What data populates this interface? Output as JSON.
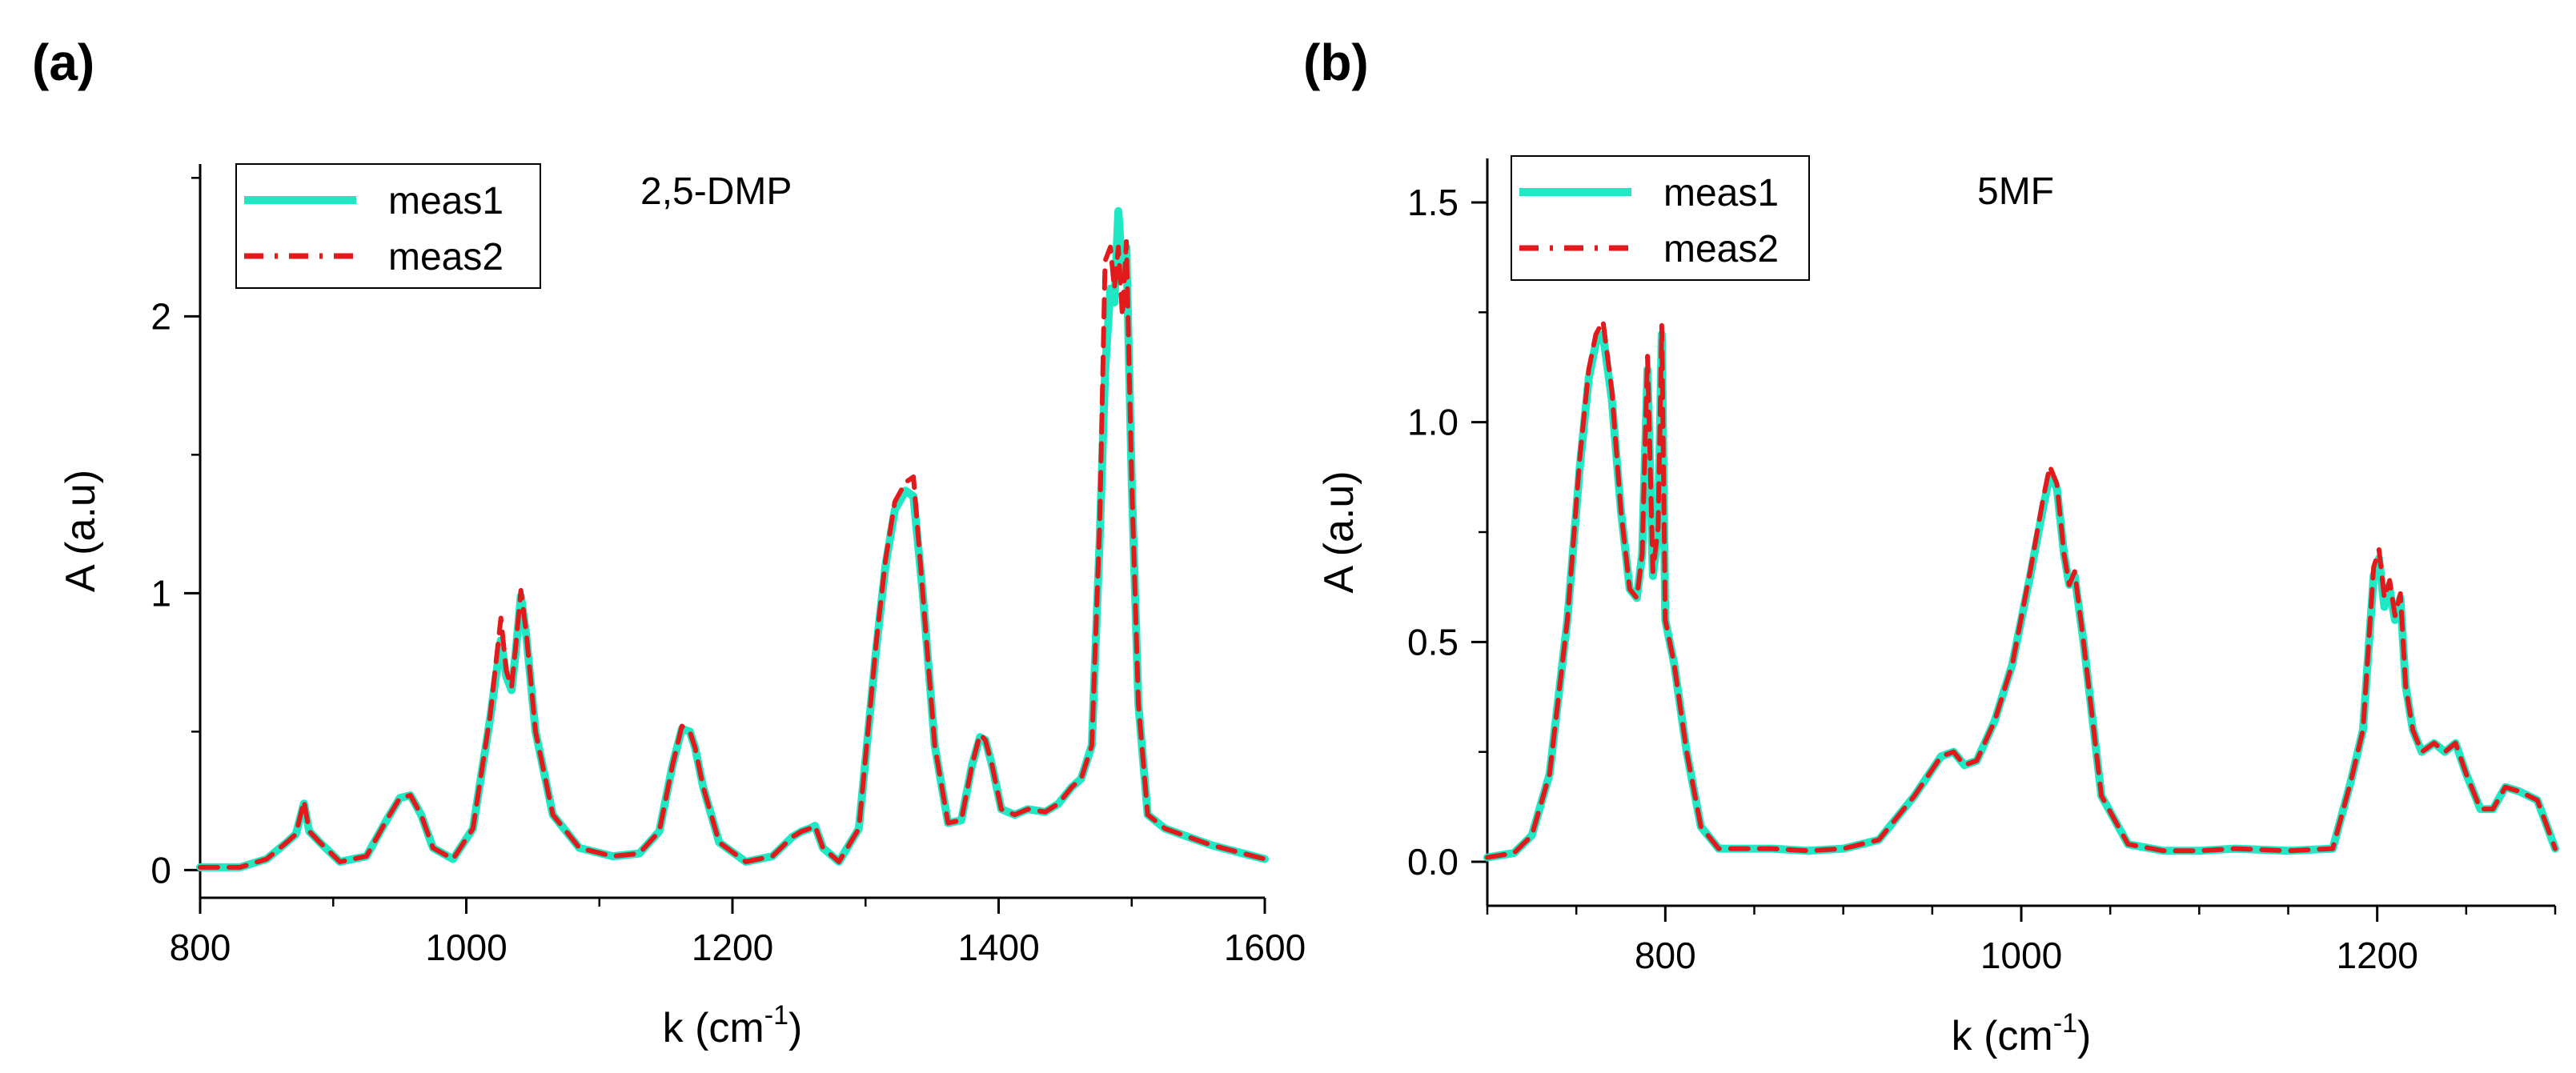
{
  "chart_data": [
    {
      "type": "line",
      "panel_label": "(a)",
      "title": "2,5-DMP",
      "xlabel": "k (cm",
      "xlabel_sup": "-1",
      "xlabel_close": ")",
      "ylabel": "A (a.u)",
      "xlim": [
        800,
        1600
      ],
      "ylim": [
        -0.1,
        2.55
      ],
      "xticks": [
        800,
        1000,
        1200,
        1400,
        1600
      ],
      "xtick_labels": [
        "800",
        "1000",
        "1200",
        "1400",
        "1600"
      ],
      "yticks": [
        0,
        1,
        2
      ],
      "ytick_labels": [
        "0",
        "1",
        "2"
      ],
      "grid": false,
      "legend_position": "top-left",
      "colors": {
        "meas1": "#1fe9c4",
        "meas2": "#e31a1c"
      },
      "series": [
        {
          "name": "meas1",
          "style": "solid",
          "x": [
            800,
            830,
            850,
            865,
            872,
            878,
            882,
            890,
            905,
            925,
            940,
            950,
            958,
            966,
            975,
            990,
            1005,
            1018,
            1026,
            1030,
            1034,
            1037,
            1041,
            1045,
            1052,
            1065,
            1085,
            1110,
            1130,
            1145,
            1155,
            1162,
            1168,
            1172,
            1178,
            1190,
            1210,
            1230,
            1245,
            1252,
            1258,
            1262,
            1268,
            1280,
            1295,
            1308,
            1315,
            1322,
            1330,
            1336,
            1343,
            1352,
            1362,
            1372,
            1380,
            1386,
            1390,
            1395,
            1402,
            1412,
            1422,
            1435,
            1445,
            1455,
            1462,
            1470,
            1476,
            1480,
            1484,
            1487,
            1490,
            1493,
            1496,
            1500,
            1505,
            1512,
            1525,
            1560,
            1600
          ],
          "values": [
            0.01,
            0.01,
            0.04,
            0.1,
            0.13,
            0.24,
            0.14,
            0.1,
            0.03,
            0.05,
            0.18,
            0.26,
            0.27,
            0.2,
            0.08,
            0.04,
            0.15,
            0.55,
            0.83,
            0.7,
            0.65,
            0.78,
            0.99,
            0.85,
            0.5,
            0.2,
            0.08,
            0.05,
            0.06,
            0.14,
            0.38,
            0.51,
            0.5,
            0.44,
            0.3,
            0.1,
            0.03,
            0.05,
            0.12,
            0.14,
            0.15,
            0.16,
            0.08,
            0.03,
            0.15,
            0.8,
            1.1,
            1.3,
            1.37,
            1.35,
            1.0,
            0.45,
            0.17,
            0.18,
            0.38,
            0.48,
            0.47,
            0.38,
            0.22,
            0.2,
            0.22,
            0.21,
            0.24,
            0.3,
            0.33,
            0.45,
            1.2,
            1.8,
            2.1,
            2.05,
            2.38,
            2.15,
            2.25,
            1.4,
            0.6,
            0.2,
            0.15,
            0.09,
            0.04
          ]
        },
        {
          "name": "meas2",
          "style": "dashed",
          "x": [
            800,
            830,
            850,
            865,
            872,
            878,
            882,
            890,
            905,
            925,
            940,
            950,
            958,
            966,
            975,
            990,
            1005,
            1018,
            1026,
            1030,
            1034,
            1037,
            1041,
            1045,
            1052,
            1065,
            1085,
            1110,
            1130,
            1145,
            1155,
            1162,
            1168,
            1172,
            1178,
            1190,
            1210,
            1230,
            1245,
            1252,
            1258,
            1262,
            1268,
            1280,
            1295,
            1308,
            1315,
            1322,
            1330,
            1336,
            1343,
            1352,
            1362,
            1372,
            1380,
            1386,
            1390,
            1395,
            1402,
            1412,
            1422,
            1435,
            1445,
            1455,
            1462,
            1470,
            1476,
            1480,
            1484,
            1487,
            1490,
            1493,
            1496,
            1500,
            1505,
            1512,
            1525,
            1560,
            1600
          ],
          "values": [
            0.01,
            0.01,
            0.04,
            0.1,
            0.13,
            0.25,
            0.14,
            0.1,
            0.03,
            0.05,
            0.18,
            0.26,
            0.27,
            0.2,
            0.08,
            0.04,
            0.15,
            0.56,
            0.91,
            0.72,
            0.66,
            0.8,
            1.01,
            0.86,
            0.5,
            0.2,
            0.08,
            0.05,
            0.06,
            0.14,
            0.38,
            0.52,
            0.5,
            0.44,
            0.3,
            0.1,
            0.03,
            0.05,
            0.12,
            0.14,
            0.15,
            0.16,
            0.08,
            0.03,
            0.15,
            0.82,
            1.12,
            1.33,
            1.4,
            1.42,
            1.0,
            0.45,
            0.17,
            0.18,
            0.38,
            0.49,
            0.47,
            0.38,
            0.22,
            0.2,
            0.22,
            0.21,
            0.24,
            0.3,
            0.33,
            0.45,
            1.25,
            2.2,
            2.25,
            2.1,
            2.25,
            2.0,
            2.27,
            1.4,
            0.6,
            0.2,
            0.15,
            0.09,
            0.04
          ]
        }
      ],
      "legend": {
        "entries": [
          "meas1",
          "meas2"
        ]
      }
    },
    {
      "type": "line",
      "panel_label": "(b)",
      "title": "5MF",
      "xlabel": "k (cm",
      "xlabel_sup": "-1",
      "xlabel_close": ")",
      "ylabel": "A (a.u)",
      "xlim": [
        700,
        1300
      ],
      "ylim": [
        -0.1,
        1.6
      ],
      "xticks": [
        800,
        1000,
        1200
      ],
      "xtick_labels": [
        "800",
        "1000",
        "1200"
      ],
      "yticks": [
        0.0,
        0.5,
        1.0,
        1.5
      ],
      "ytick_labels": [
        "0.0",
        "0.5",
        "1.0",
        "1.5"
      ],
      "grid": false,
      "legend_position": "top-left",
      "colors": {
        "meas1": "#1fe9c4",
        "meas2": "#e31a1c"
      },
      "series": [
        {
          "name": "meas1",
          "style": "solid",
          "x": [
            700,
            715,
            725,
            735,
            745,
            752,
            757,
            761,
            765,
            770,
            775,
            780,
            784,
            787,
            790,
            793,
            796,
            798,
            800,
            805,
            812,
            820,
            830,
            845,
            860,
            880,
            900,
            920,
            940,
            955,
            962,
            968,
            975,
            985,
            995,
            1005,
            1012,
            1016,
            1020,
            1024,
            1027,
            1030,
            1035,
            1045,
            1060,
            1080,
            1100,
            1120,
            1150,
            1175,
            1185,
            1192,
            1198,
            1201,
            1204,
            1207,
            1210,
            1213,
            1216,
            1220,
            1225,
            1232,
            1238,
            1244,
            1250,
            1258,
            1265,
            1272,
            1280,
            1290,
            1300
          ],
          "values": [
            0.01,
            0.02,
            0.06,
            0.2,
            0.55,
            0.9,
            1.1,
            1.18,
            1.2,
            1.05,
            0.8,
            0.62,
            0.6,
            0.7,
            1.12,
            0.65,
            0.75,
            1.2,
            0.55,
            0.45,
            0.25,
            0.08,
            0.03,
            0.03,
            0.03,
            0.025,
            0.03,
            0.05,
            0.15,
            0.24,
            0.25,
            0.22,
            0.23,
            0.32,
            0.45,
            0.65,
            0.8,
            0.88,
            0.85,
            0.7,
            0.63,
            0.65,
            0.5,
            0.15,
            0.04,
            0.025,
            0.025,
            0.03,
            0.025,
            0.03,
            0.18,
            0.3,
            0.65,
            0.69,
            0.58,
            0.62,
            0.55,
            0.6,
            0.4,
            0.3,
            0.25,
            0.27,
            0.25,
            0.27,
            0.2,
            0.12,
            0.12,
            0.17,
            0.16,
            0.14,
            0.03
          ]
        },
        {
          "name": "meas2",
          "style": "dashed",
          "x": [
            700,
            715,
            725,
            735,
            745,
            752,
            757,
            761,
            765,
            770,
            775,
            780,
            784,
            787,
            790,
            793,
            796,
            798,
            800,
            805,
            812,
            820,
            830,
            845,
            860,
            880,
            900,
            920,
            940,
            955,
            962,
            968,
            975,
            985,
            995,
            1005,
            1012,
            1016,
            1020,
            1024,
            1027,
            1030,
            1035,
            1045,
            1060,
            1080,
            1100,
            1120,
            1150,
            1175,
            1185,
            1192,
            1198,
            1201,
            1204,
            1207,
            1210,
            1213,
            1216,
            1220,
            1225,
            1232,
            1238,
            1244,
            1250,
            1258,
            1265,
            1272,
            1280,
            1290,
            1300
          ],
          "values": [
            0.01,
            0.02,
            0.06,
            0.2,
            0.55,
            0.92,
            1.12,
            1.2,
            1.23,
            1.07,
            0.8,
            0.62,
            0.6,
            0.7,
            1.15,
            0.66,
            0.76,
            1.22,
            0.55,
            0.45,
            0.25,
            0.08,
            0.03,
            0.03,
            0.03,
            0.025,
            0.03,
            0.05,
            0.15,
            0.24,
            0.25,
            0.22,
            0.23,
            0.32,
            0.45,
            0.66,
            0.82,
            0.9,
            0.86,
            0.7,
            0.63,
            0.66,
            0.5,
            0.15,
            0.04,
            0.025,
            0.025,
            0.03,
            0.025,
            0.03,
            0.18,
            0.3,
            0.67,
            0.71,
            0.6,
            0.64,
            0.56,
            0.61,
            0.4,
            0.3,
            0.25,
            0.27,
            0.25,
            0.27,
            0.2,
            0.12,
            0.12,
            0.17,
            0.16,
            0.14,
            0.03
          ]
        }
      ],
      "legend": {
        "entries": [
          "meas1",
          "meas2"
        ]
      }
    }
  ]
}
